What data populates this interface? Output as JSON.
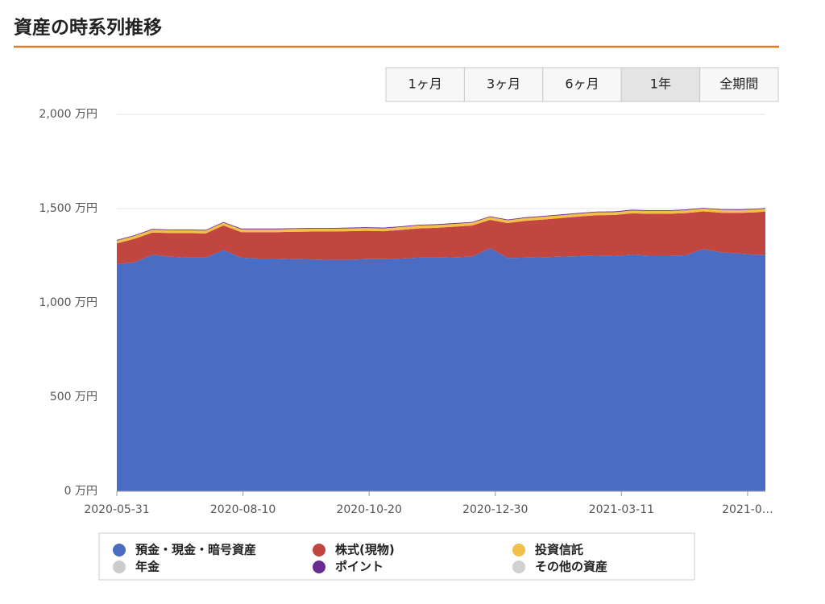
{
  "header": {
    "title": "資産の時系列推移"
  },
  "range_buttons": {
    "options": [
      "1ヶ月",
      "3ヶ月",
      "6ヶ月",
      "1年",
      "全期間"
    ],
    "active": 3
  },
  "chart_data": {
    "type": "stacked-area",
    "x": [
      "2020-05-31",
      "2020-06-10",
      "2020-06-20",
      "2020-06-30",
      "2020-07-10",
      "2020-07-20",
      "2020-07-30",
      "2020-08-09",
      "2020-08-19",
      "2020-08-29",
      "2020-09-08",
      "2020-09-18",
      "2020-09-28",
      "2020-10-08",
      "2020-10-18",
      "2020-10-28",
      "2020-11-07",
      "2020-11-17",
      "2020-11-27",
      "2020-12-07",
      "2020-12-17",
      "2020-12-27",
      "2021-01-06",
      "2021-01-16",
      "2021-01-26",
      "2021-02-05",
      "2021-02-15",
      "2021-02-25",
      "2021-03-07",
      "2021-03-17",
      "2021-03-27",
      "2021-04-06",
      "2021-04-16",
      "2021-04-26",
      "2021-05-06",
      "2021-05-16",
      "2021-05-26",
      "2021-05-31"
    ],
    "xlim": [
      "2020-05-31",
      "2021-05-31"
    ],
    "xticks": [
      "2020-05-31",
      "2020-08-10",
      "2020-10-20",
      "2020-12-30",
      "2021-03-11",
      {
        "value": "2021-05-21",
        "label": "2021-0…"
      }
    ],
    "ylim": [
      0,
      2000
    ],
    "yticks": [
      {
        "value": 0,
        "label": "0 万円"
      },
      {
        "value": 500,
        "label": "500 万円"
      },
      {
        "value": 1000,
        "label": "1,000 万円"
      },
      {
        "value": 1500,
        "label": "1,500 万円"
      },
      {
        "value": 2000,
        "label": "2,000 万円"
      }
    ],
    "grid": true,
    "series": [
      {
        "name": "預金・現金・暗号資産",
        "color": "#4a6cc3",
        "values": [
          1205,
          1215,
          1255,
          1245,
          1240,
          1240,
          1280,
          1240,
          1235,
          1235,
          1232,
          1230,
          1228,
          1228,
          1232,
          1232,
          1235,
          1240,
          1240,
          1242,
          1245,
          1290,
          1238,
          1240,
          1242,
          1245,
          1248,
          1250,
          1248,
          1255,
          1250,
          1250,
          1252,
          1285,
          1268,
          1262,
          1255,
          1255
        ]
      },
      {
        "name": "株式(現物)",
        "color": "#c0463f",
        "values": [
          110,
          125,
          118,
          125,
          130,
          128,
          130,
          135,
          140,
          140,
          145,
          148,
          150,
          152,
          150,
          148,
          152,
          155,
          158,
          162,
          165,
          150,
          185,
          195,
          200,
          205,
          210,
          215,
          218,
          220,
          222,
          222,
          224,
          200,
          210,
          215,
          225,
          230
        ]
      },
      {
        "name": "投資信託",
        "color": "#f2c04a",
        "values": [
          15,
          15,
          15,
          15,
          15,
          15,
          15,
          15,
          15,
          15,
          15,
          15,
          15,
          15,
          15,
          15,
          15,
          15,
          15,
          15,
          15,
          15,
          15,
          15,
          15,
          15,
          15,
          15,
          15,
          15,
          15,
          15,
          15,
          15,
          15,
          15,
          15,
          15
        ]
      },
      {
        "name": "年金",
        "color": "#cccccc",
        "hidden": true,
        "values": [
          0,
          0,
          0,
          0,
          0,
          0,
          0,
          0,
          0,
          0,
          0,
          0,
          0,
          0,
          0,
          0,
          0,
          0,
          0,
          0,
          0,
          0,
          0,
          0,
          0,
          0,
          0,
          0,
          0,
          0,
          0,
          0,
          0,
          0,
          0,
          0,
          0,
          0
        ]
      },
      {
        "name": "ポイント",
        "color": "#6a2c8e",
        "values": [
          4,
          4,
          4,
          4,
          4,
          4,
          4,
          4,
          4,
          4,
          4,
          4,
          4,
          4,
          4,
          4,
          4,
          4,
          4,
          4,
          4,
          4,
          4,
          4,
          4,
          4,
          4,
          4,
          4,
          4,
          4,
          4,
          4,
          4,
          4,
          4,
          4,
          4
        ]
      },
      {
        "name": "その他の資産",
        "color": "#d0d0d0",
        "values": [
          0,
          0,
          0,
          0,
          0,
          0,
          0,
          0,
          0,
          0,
          0,
          0,
          0,
          0,
          0,
          0,
          0,
          0,
          0,
          0,
          0,
          0,
          0,
          0,
          0,
          0,
          0,
          0,
          0,
          0,
          0,
          0,
          0,
          0,
          0,
          0,
          0,
          0
        ]
      }
    ]
  }
}
